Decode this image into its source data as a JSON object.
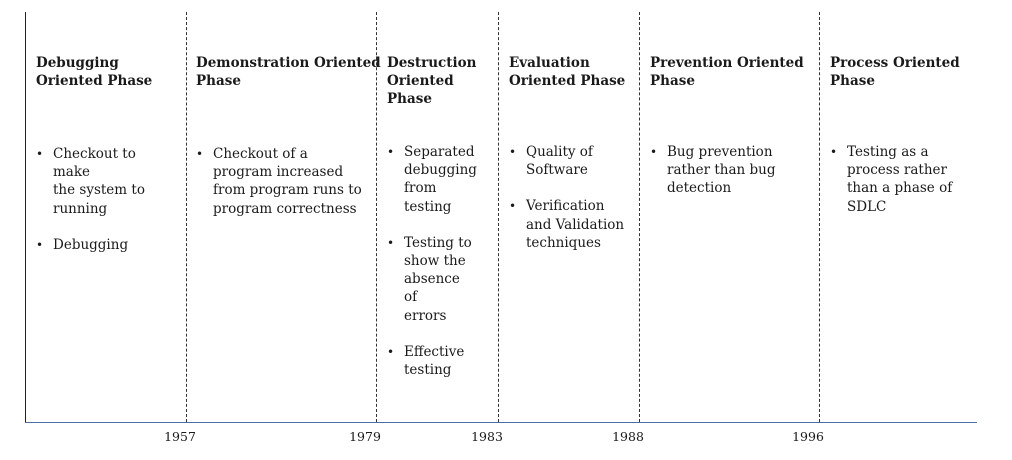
{
  "phases": [
    {
      "title": "Debugging Oriented Phase",
      "title_lines": [
        "Debugging",
        "Oriented Phase"
      ],
      "bullets": [
        [
          "Checkout to make",
          "the system to",
          "running"
        ],
        [
          "Debugging"
        ]
      ]
    },
    {
      "title": "Demonstration Oriented Phase",
      "title_lines": [
        "Demonstration Oriented",
        "Phase"
      ],
      "bullets": [
        [
          "Checkout of a",
          "program increased",
          "from program runs to",
          "program correctness"
        ]
      ]
    },
    {
      "title": "Destruction Oriented Phase",
      "title_lines": [
        "Destruction",
        "Oriented",
        "Phase"
      ],
      "bullets": [
        [
          "Separated",
          "debugging",
          "from testing"
        ],
        [
          "Testing to",
          "show the",
          "absence of",
          "errors"
        ],
        [
          "Effective",
          "testing"
        ]
      ]
    },
    {
      "title": "Evaluation Oriented Phase",
      "title_lines": [
        "Evaluation",
        "Oriented Phase"
      ],
      "bullets": [
        [
          "Quality of",
          "Software"
        ],
        [
          "Verification",
          "and Validation",
          "techniques"
        ]
      ]
    },
    {
      "title": "Prevention Oriented Phase",
      "title_lines": [
        "Prevention Oriented",
        "Phase"
      ],
      "bullets": [
        [
          "Bug prevention",
          "rather than bug",
          "detection"
        ]
      ]
    },
    {
      "title": "Process Oriented Phase",
      "title_lines": [
        "Process Oriented",
        "Phase"
      ],
      "bullets": [
        [
          "Testing as a",
          "process rather",
          "than a phase of",
          "SDLC"
        ]
      ]
    }
  ],
  "years": [
    "1957",
    "1979",
    "1983",
    "1988",
    "1996"
  ]
}
